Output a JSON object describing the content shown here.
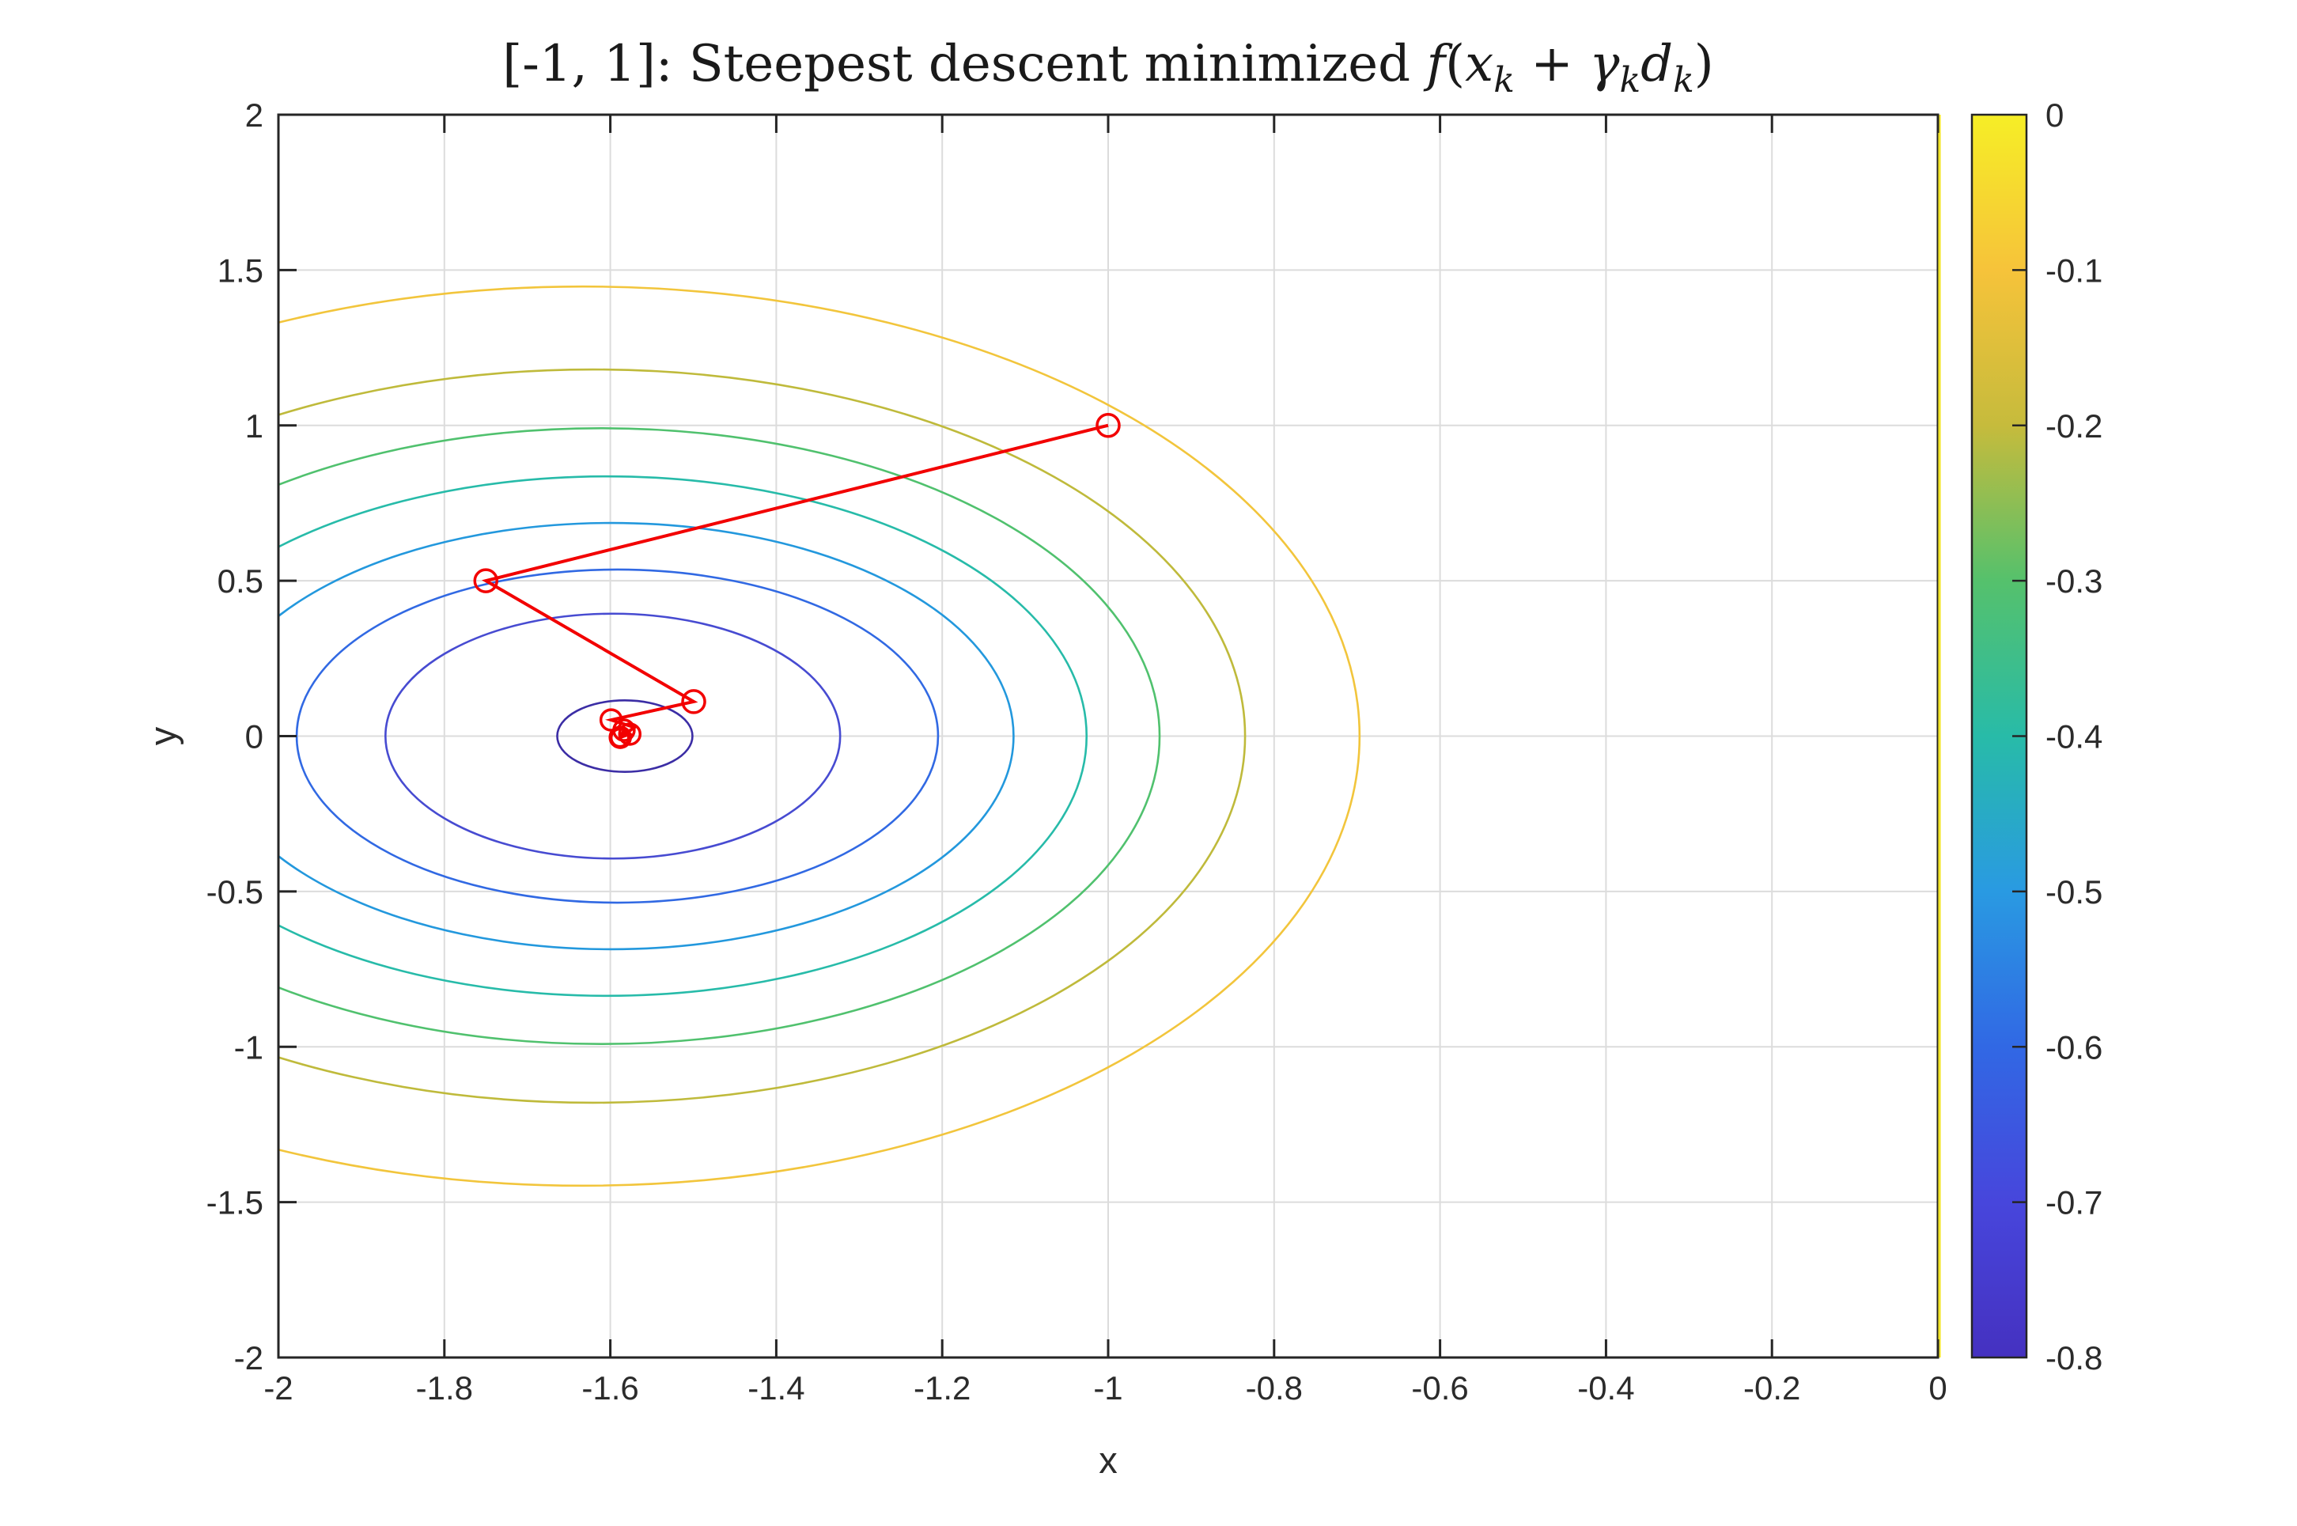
{
  "figure": {
    "background": "#ffffff",
    "text_color": "#2b2b2b",
    "grid_color": "#dcdcdc",
    "spine_color": "#252525"
  },
  "chart_data": {
    "type": "contour",
    "title_plain": "[-1, 1]: Steepest descent minimized f(xk + γkdk)",
    "title_segments": [
      {
        "text": "[-1, 1]: Steepest descent minimized ",
        "italic": false,
        "sub": false
      },
      {
        "text": "f",
        "italic": true,
        "sub": false
      },
      {
        "text": "(",
        "italic": false,
        "sub": false
      },
      {
        "text": "x",
        "italic": true,
        "sub": false
      },
      {
        "text": "k",
        "italic": true,
        "sub": true
      },
      {
        "text": " + ",
        "italic": false,
        "sub": false
      },
      {
        "text": "γ",
        "italic": true,
        "sub": false
      },
      {
        "text": "k",
        "italic": true,
        "sub": true
      },
      {
        "text": "d",
        "italic": true,
        "sub": false
      },
      {
        "text": "k",
        "italic": true,
        "sub": true
      },
      {
        "text": ")",
        "italic": false,
        "sub": false
      }
    ],
    "xlabel": "x",
    "ylabel": "y",
    "xlim": [
      -2,
      0
    ],
    "ylim": [
      -2,
      2
    ],
    "grid": true,
    "x_ticks": [
      {
        "v": -2,
        "label": "-2"
      },
      {
        "v": -1.8,
        "label": "-1.8"
      },
      {
        "v": -1.6,
        "label": "-1.6"
      },
      {
        "v": -1.4,
        "label": "-1.4"
      },
      {
        "v": -1.2,
        "label": "-1.2"
      },
      {
        "v": -1,
        "label": "-1"
      },
      {
        "v": -0.8,
        "label": "-0.8"
      },
      {
        "v": -0.6,
        "label": "-0.6"
      },
      {
        "v": -0.4,
        "label": "-0.4"
      },
      {
        "v": -0.2,
        "label": "-0.2"
      },
      {
        "v": 0,
        "label": "0"
      }
    ],
    "y_ticks": [
      {
        "v": 2,
        "label": "2"
      },
      {
        "v": 1.5,
        "label": "1.5"
      },
      {
        "v": 1,
        "label": "1"
      },
      {
        "v": 0.5,
        "label": "0.5"
      },
      {
        "v": 0,
        "label": "0"
      },
      {
        "v": -0.5,
        "label": "-0.5"
      },
      {
        "v": -1,
        "label": "-1"
      },
      {
        "v": -1.5,
        "label": "-1.5"
      },
      {
        "v": -2,
        "label": "-2"
      }
    ],
    "contour_levels": [
      {
        "level": -0.1,
        "color": "#f2c53c",
        "center_x": -1.633,
        "center_y": 0,
        "semi_x": 0.936,
        "semi_y": 1.447
      },
      {
        "level": -0.2,
        "color": "#bfba3b",
        "center_x": -1.621,
        "center_y": 0,
        "semi_x": 0.786,
        "semi_y": 1.18
      },
      {
        "level": -0.3,
        "color": "#50c16e",
        "center_x": -1.611,
        "center_y": 0,
        "semi_x": 0.673,
        "semi_y": 0.991
      },
      {
        "level": -0.4,
        "color": "#27bba9",
        "center_x": -1.604,
        "center_y": 0,
        "semi_x": 0.578,
        "semi_y": 0.836
      },
      {
        "level": -0.5,
        "color": "#2398dd",
        "center_x": -1.599,
        "center_y": 0,
        "semi_x": 0.485,
        "semi_y": 0.686
      },
      {
        "level": -0.6,
        "color": "#3169e3",
        "center_x": -1.5915,
        "center_y": 0,
        "semi_x": 0.3865,
        "semi_y": 0.536
      },
      {
        "level": -0.7,
        "color": "#474bd1",
        "center_x": -1.597,
        "center_y": 0,
        "semi_x": 0.274,
        "semi_y": 0.394
      },
      {
        "level": -0.8,
        "color": "#3b2da5",
        "center_x": -1.5825,
        "center_y": 0,
        "semi_x": 0.0815,
        "semi_y": 0.115
      }
    ],
    "zero_contour": {
      "level": 0,
      "x": 0,
      "color": "#f3e62b"
    },
    "descent_path": {
      "color": "#f20000",
      "marker": "circle",
      "points": [
        {
          "x": -1,
          "y": 1,
          "marker": true,
          "r": 14
        },
        {
          "x": -1.75,
          "y": 0.5,
          "marker": true,
          "r": 14
        },
        {
          "x": -1.4995,
          "y": 0.111,
          "marker": true,
          "r": 14
        },
        {
          "x": -1.599,
          "y": 0.052,
          "marker": true,
          "r": 13
        },
        {
          "x": -1.571,
          "y": 0.028,
          "marker": false,
          "r": 0
        },
        {
          "x": -1.588,
          "y": -0.004,
          "marker": true,
          "r": 13
        },
        {
          "x": -1.5765,
          "y": 0.0065,
          "marker": true,
          "r": 13
        },
        {
          "x": -1.5835,
          "y": 0.019,
          "marker": true,
          "r": 13
        },
        {
          "x": -1.5885,
          "y": -0.0055,
          "marker": true,
          "r": 11
        }
      ]
    },
    "colorbar": {
      "min": -0.8,
      "max": 0,
      "tick_labels": [
        "0",
        "-0.1",
        "-0.2",
        "-0.3",
        "-0.4",
        "-0.5",
        "-0.6",
        "-0.7",
        "-0.8"
      ],
      "gradient": [
        {
          "at": 0,
          "color": "#f6ee26"
        },
        {
          "at": 0.125,
          "color": "#f6c33a"
        },
        {
          "at": 0.25,
          "color": "#c6bb3c"
        },
        {
          "at": 0.375,
          "color": "#55c16c"
        },
        {
          "at": 0.5,
          "color": "#28bba8"
        },
        {
          "at": 0.625,
          "color": "#299ae2"
        },
        {
          "at": 0.75,
          "color": "#3168e4"
        },
        {
          "at": 0.875,
          "color": "#4746dc"
        },
        {
          "at": 1,
          "color": "#4531c0"
        }
      ]
    }
  }
}
